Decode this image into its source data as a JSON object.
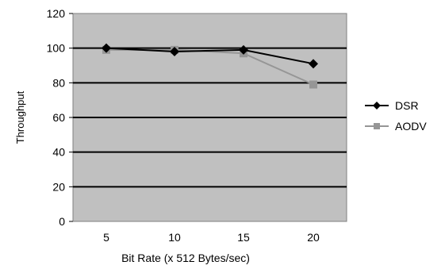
{
  "chart_data": {
    "type": "line",
    "title": "",
    "xlabel": "Bit Rate (x 512 Bytes/sec)",
    "ylabel": "Throughput",
    "categories": [
      "5",
      "10",
      "15",
      "20"
    ],
    "ylim": [
      0,
      120
    ],
    "yticks": [
      0,
      20,
      40,
      60,
      80,
      100,
      120
    ],
    "grid": true,
    "legend_position": "right",
    "plot_background": "#c0c0c0",
    "series": [
      {
        "name": "DSR",
        "values": [
          100,
          98,
          99,
          91
        ],
        "color": "#000000",
        "marker": "diamond"
      },
      {
        "name": "AODV",
        "values": [
          99,
          99,
          97,
          79
        ],
        "color": "#969696",
        "marker": "square"
      }
    ]
  }
}
